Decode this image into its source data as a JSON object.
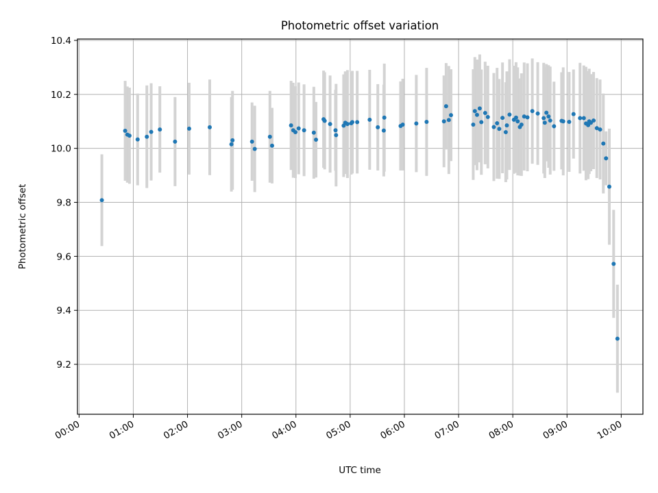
{
  "chart_data": {
    "type": "scatter",
    "title": "Photometric offset variation",
    "xlabel": "UTC time",
    "ylabel": "Photometric offset",
    "x_unit": "UTC hours",
    "xlim": [
      -0.03,
      10.4
    ],
    "ylim": [
      9.015,
      10.405
    ],
    "xticks": [
      0,
      1,
      2,
      3,
      4,
      5,
      6,
      7,
      8,
      9,
      10
    ],
    "xtick_labels": [
      "00:00",
      "01:00",
      "02:00",
      "03:00",
      "04:00",
      "05:00",
      "06:00",
      "07:00",
      "08:00",
      "09:00",
      "10:00"
    ],
    "yticks": [
      9.2,
      9.4,
      9.6,
      9.8,
      10.0,
      10.2,
      10.4
    ],
    "ytick_labels": [
      "9.2",
      "9.4",
      "9.6",
      "9.8",
      "10.0",
      "10.2",
      "10.4"
    ],
    "grid": true,
    "colors": {
      "marker": "#1f77b4",
      "errorbar": "#d3d3d3",
      "grid": "#b0b0b0"
    },
    "series": [
      {
        "x": [
          0.42,
          0.85,
          0.89,
          0.93,
          1.08,
          1.25,
          1.33,
          1.49,
          1.77,
          2.03,
          2.41,
          2.81,
          2.83,
          3.19,
          3.24,
          3.52,
          3.56,
          3.91,
          3.95,
          3.99,
          4.05,
          4.15,
          4.33,
          4.37,
          4.51,
          4.53,
          4.63,
          4.73,
          4.74,
          4.88,
          4.91,
          4.95,
          5.02,
          5.04,
          5.13,
          5.36,
          5.51,
          5.62,
          5.63,
          5.93,
          5.97,
          6.22,
          6.41,
          6.73,
          6.77,
          6.82,
          6.86,
          7.27,
          7.3,
          7.34,
          7.39,
          7.42,
          7.49,
          7.54,
          7.65,
          7.71,
          7.75,
          7.81,
          7.87,
          7.89,
          7.94,
          8.02,
          8.06,
          8.09,
          8.13,
          8.16,
          8.21,
          8.27,
          8.36,
          8.46,
          8.57,
          8.59,
          8.62,
          8.66,
          8.69,
          8.76,
          8.9,
          8.93,
          9.04,
          9.12,
          9.24,
          9.31,
          9.35,
          9.39,
          9.41,
          9.44,
          9.49,
          9.55,
          9.61,
          9.67,
          9.72,
          9.78,
          9.86,
          9.93
        ],
        "y": [
          9.808,
          10.065,
          10.051,
          10.047,
          10.033,
          10.043,
          10.061,
          10.07,
          10.025,
          10.073,
          10.078,
          10.015,
          10.03,
          10.025,
          9.998,
          10.043,
          10.01,
          10.085,
          10.067,
          10.06,
          10.074,
          10.067,
          10.058,
          10.032,
          10.108,
          10.102,
          10.09,
          10.067,
          10.049,
          10.084,
          10.095,
          10.09,
          10.093,
          10.097,
          10.097,
          10.106,
          10.078,
          10.066,
          10.114,
          10.083,
          10.088,
          10.092,
          10.098,
          10.1,
          10.156,
          10.105,
          10.123,
          10.088,
          10.138,
          10.124,
          10.148,
          10.097,
          10.131,
          10.116,
          10.079,
          10.093,
          10.072,
          10.113,
          10.06,
          10.085,
          10.125,
          10.106,
          10.114,
          10.1,
          10.079,
          10.088,
          10.118,
          10.115,
          10.138,
          10.129,
          10.112,
          10.095,
          10.132,
          10.118,
          10.103,
          10.082,
          10.102,
          10.1,
          10.098,
          10.127,
          10.112,
          10.112,
          10.092,
          10.086,
          10.1,
          10.095,
          10.103,
          10.075,
          10.07,
          10.018,
          9.963,
          9.858,
          9.572,
          9.295
        ],
        "yerr": [
          0.17,
          0.185,
          0.178,
          0.178,
          0.17,
          0.19,
          0.18,
          0.16,
          0.165,
          0.17,
          0.177,
          0.175,
          0.183,
          0.145,
          0.16,
          0.17,
          0.14,
          0.165,
          0.176,
          0.17,
          0.17,
          0.17,
          0.17,
          0.14,
          0.18,
          0.18,
          0.18,
          0.15,
          0.19,
          0.19,
          0.19,
          0.2,
          0.19,
          0.19,
          0.19,
          0.185,
          0.16,
          0.17,
          0.2,
          0.165,
          0.17,
          0.18,
          0.2,
          0.17,
          0.16,
          0.2,
          0.17,
          0.205,
          0.2,
          0.205,
          0.2,
          0.195,
          0.19,
          0.19,
          0.2,
          0.205,
          0.185,
          0.205,
          0.185,
          0.2,
          0.205,
          0.2,
          0.205,
          0.2,
          0.18,
          0.19,
          0.2,
          0.2,
          0.195,
          0.19,
          0.205,
          0.205,
          0.18,
          0.19,
          0.2,
          0.165,
          0.18,
          0.2,
          0.185,
          0.165,
          0.205,
          0.195,
          0.21,
          0.2,
          0.195,
          0.18,
          0.18,
          0.185,
          0.185,
          0.185,
          0.1,
          0.215,
          0.2,
          0.2
        ]
      }
    ]
  }
}
